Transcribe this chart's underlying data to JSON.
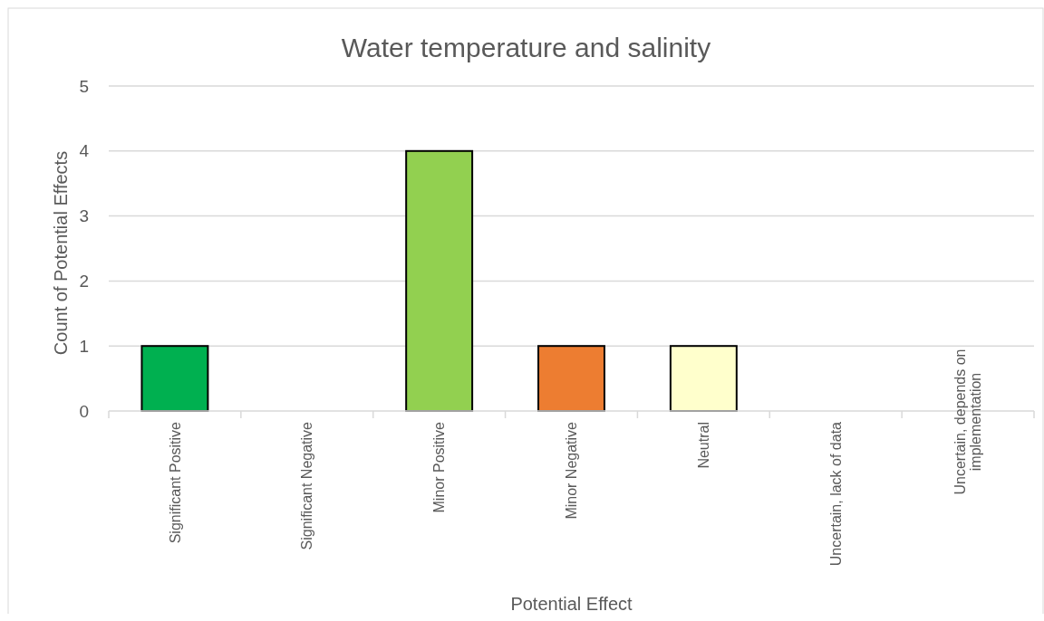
{
  "chart_data": {
    "type": "bar",
    "title": "Water temperature and salinity",
    "xlabel": "Potential Effect",
    "ylabel": "Count of Potential Effects",
    "categories": [
      "Significant Positive",
      "Significant Negative",
      "Minor Positive",
      "Minor Negative",
      "Neutral",
      "Uncertain, lack of data",
      "Uncertain, depends on\nimplementation"
    ],
    "values": [
      1,
      0,
      4,
      1,
      1,
      0,
      0
    ],
    "colors": [
      "#00b050",
      null,
      "#92d050",
      "#ed7d31",
      "#ffffcc",
      null,
      null
    ],
    "ylim": [
      0,
      5
    ],
    "yticks": [
      0,
      1,
      2,
      3,
      4,
      5
    ],
    "grid": "y"
  }
}
